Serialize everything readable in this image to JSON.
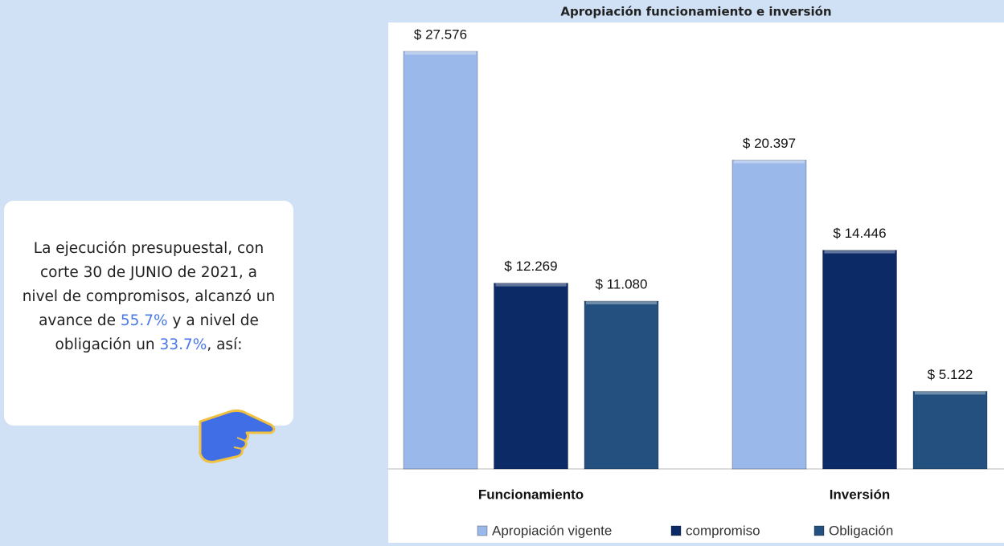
{
  "chart_data": {
    "type": "bar",
    "title": "Apropiación funcionamiento e inversión",
    "categories": [
      "Funcionamiento",
      "Inversión"
    ],
    "series": [
      {
        "name": "Apropiación vigente",
        "color": "#9bb8ea",
        "values": [
          27576,
          20397
        ],
        "value_labels": [
          "$ 27.576",
          "$ 20.397"
        ]
      },
      {
        "name": "compromiso",
        "color": "#0c2a66",
        "values": [
          12269,
          14446
        ],
        "value_labels": [
          "$ 12.269",
          "$ 14.446"
        ]
      },
      {
        "name": "Obligación",
        "color": "#23507f",
        "values": [
          11080,
          5122
        ],
        "value_labels": [
          "$ 11.080",
          "$ 5.122"
        ]
      }
    ]
  },
  "callout": {
    "parts": [
      "La ejecución presupuestal, con corte 30 de JUNIO de 2021, a nivel de compromisos, alcanzó un avance de ",
      "55.7%",
      " y a nivel de obligación un ",
      "33.7%",
      ", así:"
    ]
  }
}
